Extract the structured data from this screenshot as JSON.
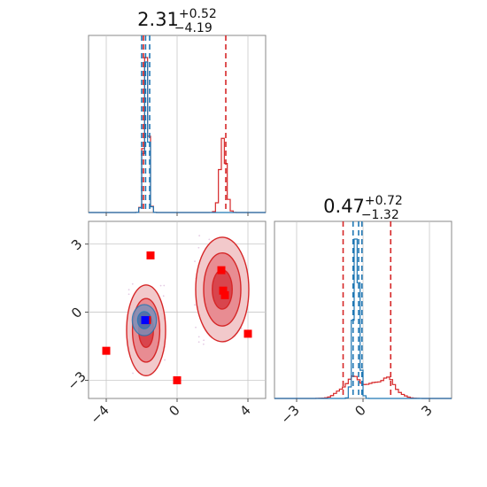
{
  "chart_data": {
    "type": "corner-plot",
    "colors": {
      "red": "#d62728",
      "blue": "#1f77b4",
      "marker_blue": "#0000ff",
      "marker_red": "#ff0000",
      "grid": "#c8c8c8",
      "axes": "#888888"
    },
    "titles": [
      {
        "value": "2.31",
        "plus": "+0.52",
        "minus": "−4.19"
      },
      {
        "value": "0.47",
        "plus": "+0.72",
        "minus": "−1.32"
      }
    ],
    "axes": {
      "x1": {
        "range": [
          -5.0,
          5.0
        ],
        "ticks": [
          -4,
          0,
          4
        ],
        "tick_labels": [
          "−4",
          "0",
          "4"
        ]
      },
      "x2": {
        "range": [
          -4.0,
          4.0
        ],
        "ticks": [
          -3,
          0,
          3
        ],
        "tick_labels": [
          "−3",
          "0",
          "3"
        ]
      },
      "y2": {
        "range": [
          -3.8,
          4.0
        ],
        "ticks": [
          -3,
          0,
          3
        ],
        "tick_labels": [
          "−3",
          "0",
          "3"
        ]
      }
    },
    "hist_param1": {
      "red_lines": [
        -1.9,
        2.75
      ],
      "blue_lines": [
        -2.0,
        -1.78,
        -1.55
      ],
      "red_peaks": [
        {
          "center": -1.75,
          "width": 0.13,
          "height": 1.0
        },
        {
          "center": 2.6,
          "width": 0.18,
          "height": 0.43
        }
      ],
      "blue_peaks": [
        {
          "center": -1.75,
          "width": 0.13,
          "height": 0.95
        }
      ]
    },
    "hist_param2": {
      "red_lines": [
        -0.9,
        1.25
      ],
      "blue_lines": [
        -0.45,
        -0.2,
        -0.05
      ],
      "blue_peaks": [
        {
          "center": -0.3,
          "width": 0.13,
          "height": 1.0
        }
      ],
      "red_peaks": [
        {
          "center": -0.4,
          "width": 0.5,
          "height": 0.13
        },
        {
          "center": 1.0,
          "width": 0.45,
          "height": 0.13
        }
      ]
    },
    "scatter_2d": {
      "red_squares": [
        {
          "x": -1.5,
          "y": 2.5
        },
        {
          "x": 2.5,
          "y": 1.85
        },
        {
          "x": 2.6,
          "y": 0.95
        },
        {
          "x": 2.7,
          "y": 0.75
        },
        {
          "x": -1.7,
          "y": -0.35
        },
        {
          "x": -4.0,
          "y": -1.7
        },
        {
          "x": 4.0,
          "y": -0.95
        },
        {
          "x": 0.0,
          "y": -3.0
        }
      ],
      "blue_squares": [
        {
          "x": -1.8,
          "y": -0.35
        }
      ],
      "red_contours": [
        {
          "cx": -1.75,
          "cy": -0.8,
          "sx": 0.55,
          "sy": 1.0
        },
        {
          "cx": 2.55,
          "cy": 1.0,
          "sx": 0.75,
          "sy": 1.15
        }
      ],
      "blue_contour": {
        "cx": -1.85,
        "cy": -0.35,
        "sx": 0.38,
        "sy": 0.38
      }
    }
  }
}
